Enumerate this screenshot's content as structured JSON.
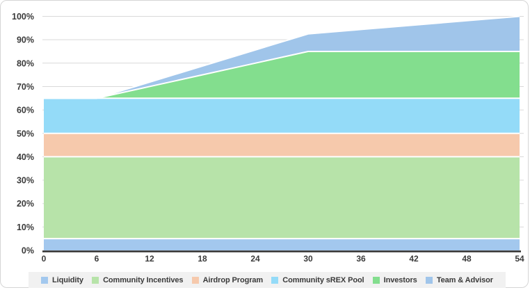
{
  "chart_data": {
    "type": "area",
    "stacked": true,
    "title": "",
    "xlabel": "",
    "ylabel": "",
    "x": [
      0,
      6,
      12,
      18,
      24,
      30,
      36,
      42,
      48,
      54
    ],
    "x_tick_labels": [
      "0",
      "6",
      "12",
      "18",
      "24",
      "30",
      "36",
      "42",
      "48",
      "54"
    ],
    "y_tick_labels": [
      "0%",
      "10%",
      "20%",
      "30%",
      "40%",
      "50%",
      "60%",
      "70%",
      "80%",
      "90%",
      "100%"
    ],
    "ylim": [
      0,
      100
    ],
    "xlim": [
      0,
      54
    ],
    "grid": "horizontal",
    "legend_position": "bottom",
    "series": [
      {
        "name": "Liquidity",
        "color": "#a3c8ee",
        "values": [
          5,
          5,
          5,
          5,
          5,
          5,
          5,
          5,
          5,
          5
        ]
      },
      {
        "name": "Community Incentives",
        "color": "#b7e3a9",
        "values": [
          35,
          35,
          35,
          35,
          35,
          35,
          35,
          35,
          35,
          35
        ]
      },
      {
        "name": "Airdrop Program",
        "color": "#f6c9ac",
        "values": [
          10,
          10,
          10,
          10,
          10,
          10,
          10,
          10,
          10,
          10
        ]
      },
      {
        "name": "Community sREX Pool",
        "color": "#94dbf8",
        "values": [
          15,
          15,
          15,
          15,
          15,
          15,
          15,
          15,
          15,
          15
        ]
      },
      {
        "name": "Investors",
        "color": "#83de8e",
        "values": [
          0,
          0,
          5,
          10,
          15,
          20,
          20,
          20,
          20,
          20
        ]
      },
      {
        "name": "Team & Advisor",
        "color": "#a0c5ea",
        "values": [
          0,
          0,
          1.875,
          3.75,
          5.625,
          7.5,
          9.375,
          11.25,
          13.125,
          15
        ]
      }
    ],
    "colors": {
      "gridline": "#d9d9d9",
      "axis_line": "#2f2f2f",
      "tick_label": "#3a3a3a",
      "area_border": "#ffffff",
      "legend_background": "#f1f1f1"
    }
  }
}
